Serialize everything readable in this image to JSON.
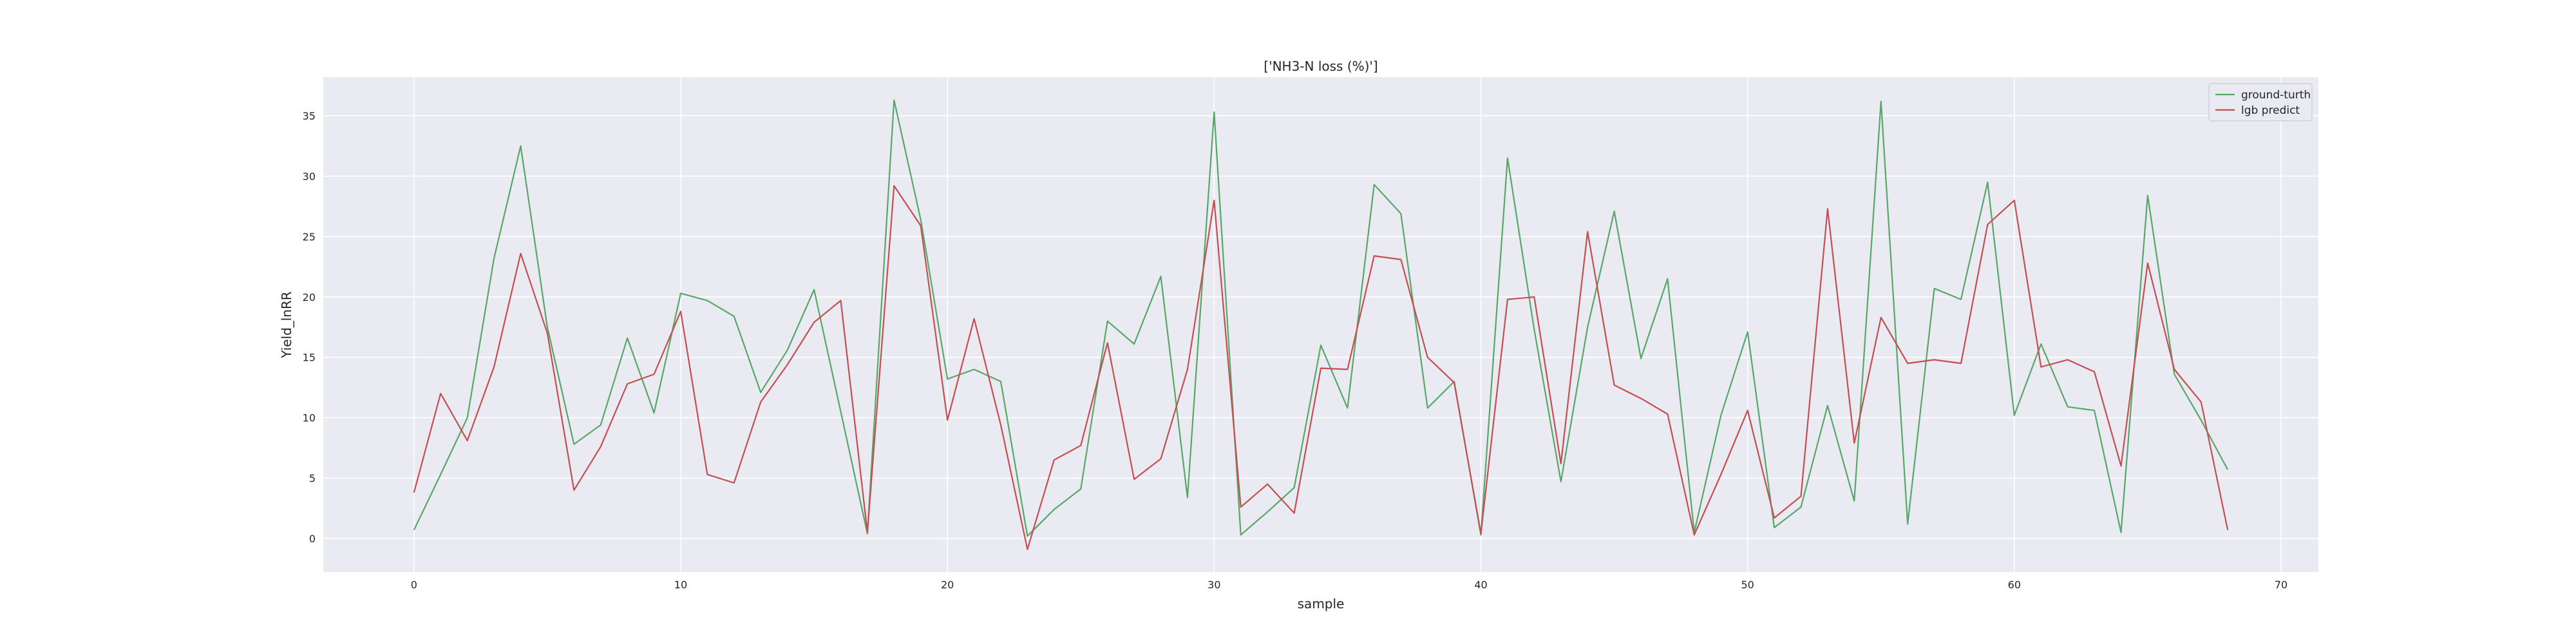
{
  "chart_data": {
    "type": "line",
    "title": "['NH3-N loss (%)']",
    "xlabel": "sample",
    "ylabel": "Yield_lnRR",
    "xlim": [
      -3.4,
      71.4
    ],
    "ylim": [
      -2.8,
      38.2
    ],
    "x_ticks": [
      0,
      10,
      20,
      30,
      40,
      50,
      60,
      70
    ],
    "y_ticks": [
      0,
      5,
      10,
      15,
      20,
      25,
      30,
      35
    ],
    "grid": true,
    "legend_position": "top-right",
    "background_color": "#eaeaf2",
    "x": [
      0,
      1,
      2,
      3,
      4,
      5,
      6,
      7,
      8,
      9,
      10,
      11,
      12,
      13,
      14,
      15,
      16,
      17,
      18,
      19,
      20,
      21,
      22,
      23,
      24,
      25,
      26,
      27,
      28,
      29,
      30,
      31,
      32,
      33,
      34,
      35,
      36,
      37,
      38,
      39,
      40,
      41,
      42,
      43,
      44,
      45,
      46,
      47,
      48,
      49,
      50,
      51,
      52,
      53,
      54,
      55,
      56,
      57,
      58,
      59,
      60,
      61,
      62,
      63,
      64,
      65,
      66,
      67,
      68
    ],
    "series": [
      {
        "name": "ground-turth",
        "color": "#55a868",
        "values": [
          0.7,
          5.3,
          10.0,
          23.2,
          32.5,
          17.5,
          7.8,
          9.4,
          16.6,
          10.4,
          20.3,
          19.7,
          18.4,
          12.1,
          15.6,
          20.6,
          10.5,
          0.4,
          36.3,
          26.4,
          13.2,
          14.0,
          13.0,
          0.2,
          2.4,
          4.1,
          18.0,
          16.1,
          21.7,
          3.4,
          35.3,
          0.3,
          2.2,
          4.2,
          16.0,
          10.8,
          29.3,
          26.9,
          10.8,
          13.0,
          0.3,
          31.5,
          17.3,
          4.7,
          17.5,
          27.1,
          14.9,
          21.5,
          0.5,
          10.2,
          17.1,
          0.9,
          2.6,
          11.0,
          3.1,
          36.2,
          1.2,
          20.7,
          19.8,
          29.5,
          10.2,
          16.1,
          10.9,
          10.6,
          0.5,
          28.4,
          13.6,
          9.8,
          5.7
        ]
      },
      {
        "name": "lgb predict",
        "color": "#c44e52",
        "values": [
          3.8,
          12.0,
          8.1,
          14.2,
          23.6,
          17.0,
          4.0,
          7.6,
          12.8,
          13.6,
          18.8,
          5.3,
          4.6,
          11.3,
          14.4,
          17.9,
          19.7,
          0.5,
          29.2,
          25.9,
          9.8,
          18.2,
          9.4,
          -0.9,
          6.5,
          7.7,
          16.2,
          4.9,
          6.6,
          14.0,
          28.0,
          2.6,
          4.5,
          2.1,
          14.1,
          14.0,
          23.4,
          23.1,
          15.0,
          12.9,
          0.4,
          19.8,
          20.0,
          6.2,
          25.4,
          12.7,
          11.6,
          10.3,
          0.3,
          5.3,
          10.6,
          1.7,
          3.5,
          27.3,
          7.9,
          18.3,
          14.5,
          14.8,
          14.5,
          26.0,
          28.0,
          14.2,
          14.8,
          13.8,
          6.0,
          22.8,
          14.0,
          11.3,
          0.7
        ]
      }
    ]
  }
}
